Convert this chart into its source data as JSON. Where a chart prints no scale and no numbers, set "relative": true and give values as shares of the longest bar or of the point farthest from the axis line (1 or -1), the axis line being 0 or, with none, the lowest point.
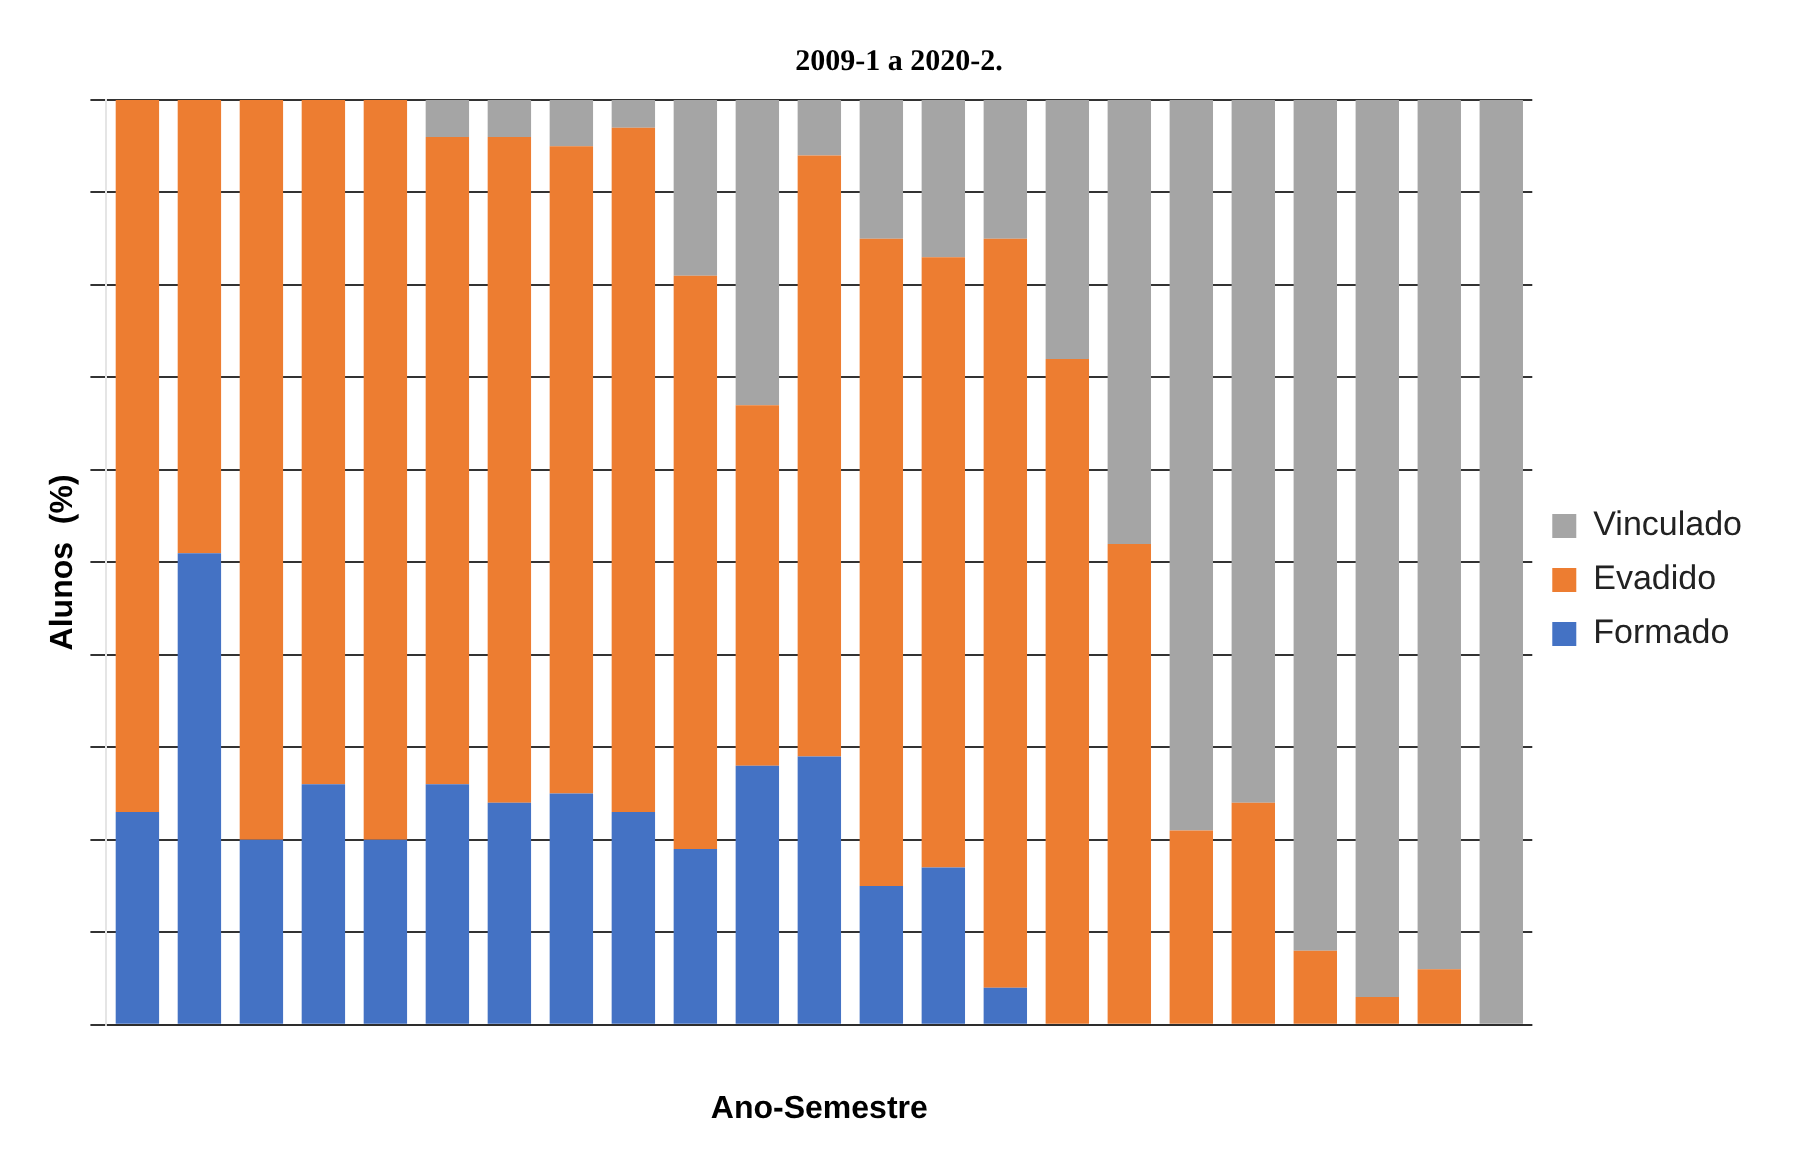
{
  "chart_data": {
    "type": "bar",
    "title": "2009-1 a 2020-2.",
    "xlabel": "Ano-Semestre",
    "ylabel": "Alunos  (%)",
    "relative": true,
    "stacked": true,
    "grid": true,
    "legend": "right",
    "categories": [
      null,
      null,
      null,
      null,
      null,
      null,
      null,
      null,
      null,
      null,
      null,
      null,
      null,
      null,
      null,
      null,
      null,
      null,
      null,
      null,
      null,
      null,
      null
    ],
    "series": [
      {
        "name": "Formado",
        "color": "#4472c4",
        "values": [
          0.23,
          0.51,
          0.2,
          0.26,
          0.2,
          0.26,
          0.24,
          0.25,
          0.23,
          0.19,
          0.28,
          0.29,
          0.15,
          0.17,
          0.04,
          0,
          0,
          0,
          0,
          0,
          0,
          0,
          0
        ]
      },
      {
        "name": "Evadido",
        "color": "#ed7d31",
        "values": [
          0.77,
          0.49,
          0.8,
          0.74,
          0.8,
          0.7,
          0.72,
          0.7,
          0.74,
          0.62,
          0.39,
          0.65,
          0.7,
          0.66,
          0.81,
          0.72,
          0.52,
          0.21,
          0.24,
          0.08,
          0.03,
          0.06,
          0
        ]
      },
      {
        "name": "Vinculado",
        "color": "#a5a5a5",
        "values": [
          0,
          0,
          0,
          0,
          0,
          0.04,
          0.04,
          0.05,
          0.03,
          0.19,
          0.33,
          0.06,
          0.15,
          0.17,
          0.15,
          0.28,
          0.48,
          0.79,
          0.76,
          0.92,
          0.97,
          0.94,
          1
        ]
      }
    ]
  }
}
